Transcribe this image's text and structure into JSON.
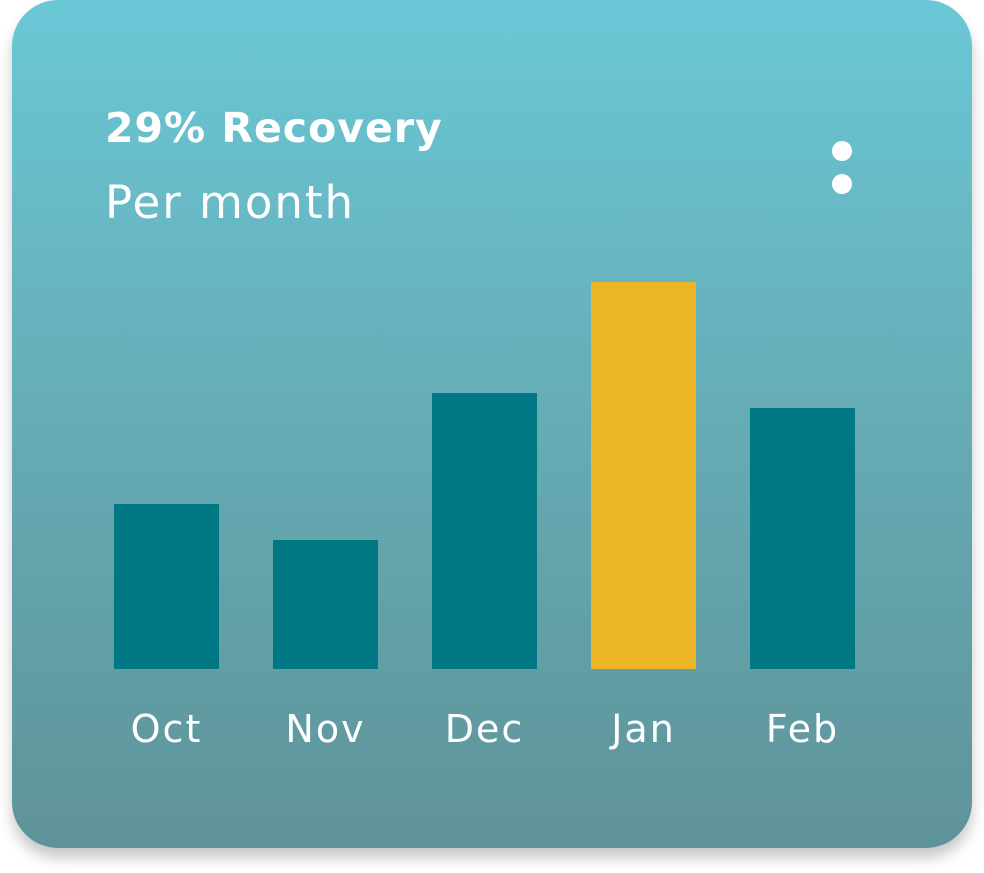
{
  "card": {
    "title": "29% Recovery",
    "subtitle": "Per month"
  },
  "menu": {
    "icon": "more-vertical-icon"
  },
  "colors": {
    "bar_default": "#007884",
    "bar_highlight": "#ecb526",
    "text": "#ffffff"
  },
  "chart_data": {
    "type": "bar",
    "categories": [
      "Oct",
      "Nov",
      "Dec",
      "Jan",
      "Feb"
    ],
    "values": [
      165,
      129,
      276,
      387,
      261
    ],
    "highlight_index": 3,
    "title": "",
    "xlabel": "",
    "ylabel": "",
    "ylim": [
      0,
      387
    ],
    "grid": false,
    "legend": "none"
  }
}
